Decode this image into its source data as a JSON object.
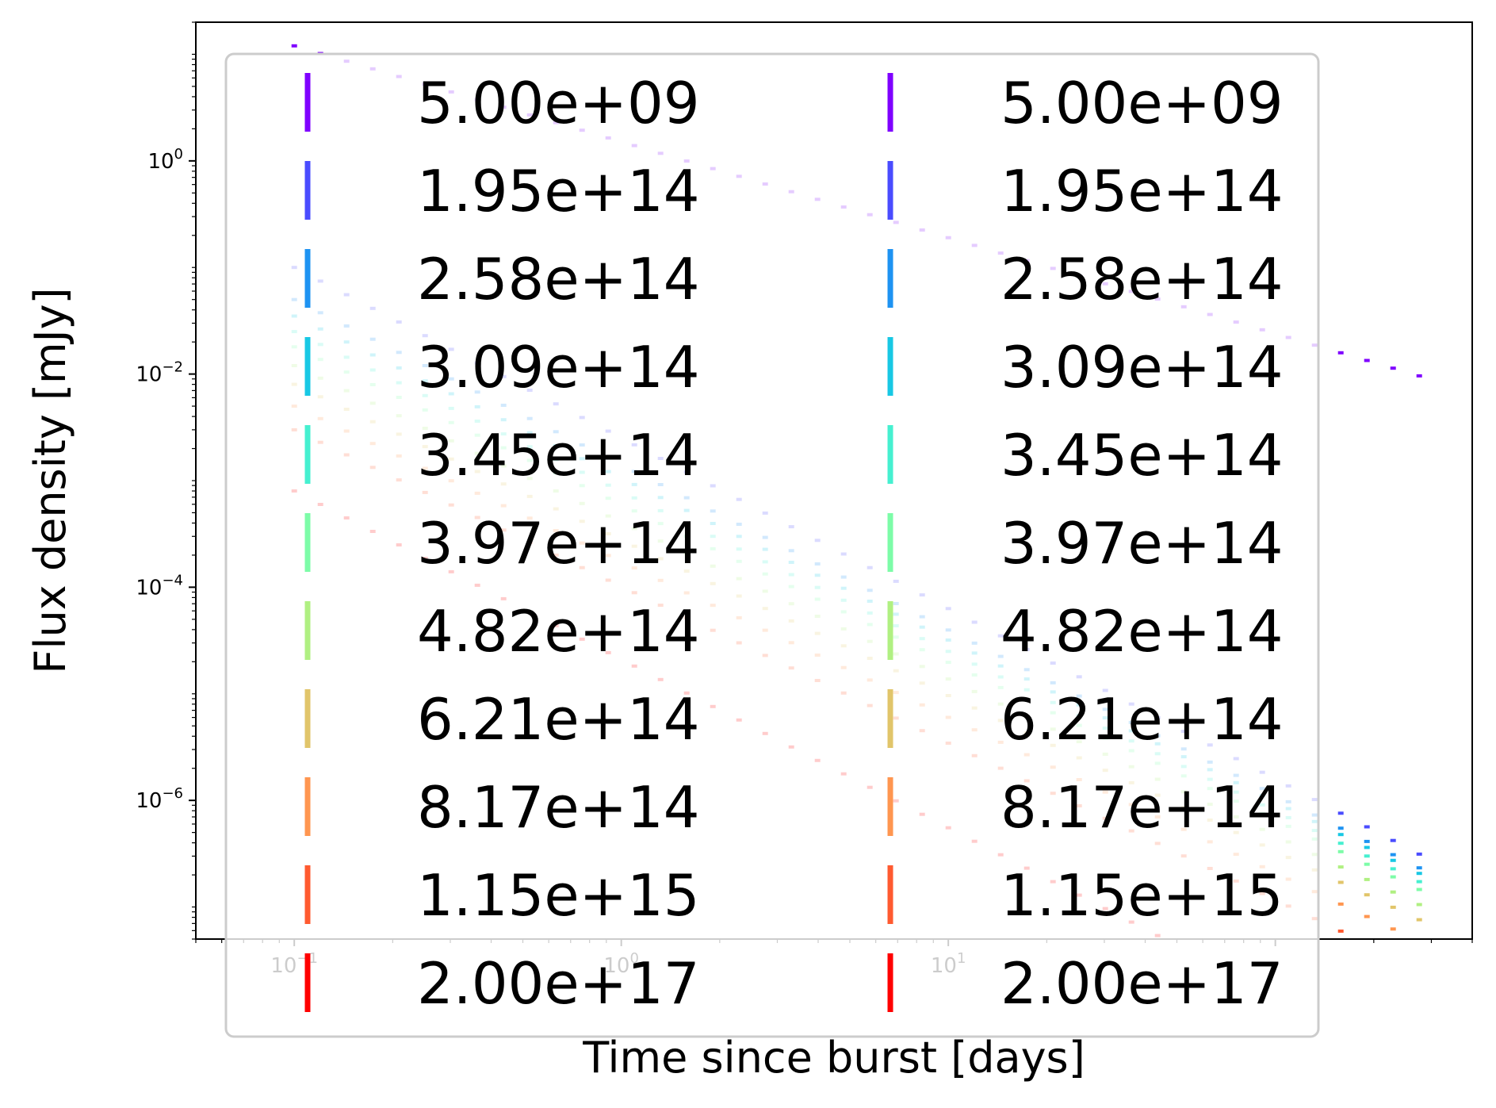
{
  "chart_data": {
    "type": "scatter",
    "title": "",
    "xlabel": "Time since burst [days]",
    "ylabel": "Flux density [mJy]",
    "xscale": "log",
    "yscale": "log",
    "xlim": [
      0.05,
      400
    ],
    "ylim": [
      5e-08,
      20
    ],
    "x_ticks": [
      {
        "value": 0.1,
        "base": "10",
        "exp": "−1"
      },
      {
        "value": 1,
        "base": "10",
        "exp": "0"
      },
      {
        "value": 10,
        "base": "10",
        "exp": "1"
      }
    ],
    "y_ticks": [
      {
        "value": 1,
        "base": "10",
        "exp": "0"
      },
      {
        "value": 0.01,
        "base": "10",
        "exp": "−2"
      },
      {
        "value": 0.0001,
        "base": "10",
        "exp": "−4"
      },
      {
        "value": 1e-06,
        "base": "10",
        "exp": "−6"
      }
    ],
    "grid": false,
    "legend": {
      "placement": "upper-left",
      "columns": 2,
      "frame_alpha": 0.8
    },
    "series": [
      {
        "name": "5.00e+09",
        "color": "#7f00ff",
        "t0": 0.1,
        "f0": 12,
        "idx": 0.9
      },
      {
        "name": "1.95e+14",
        "color": "#4a4cff",
        "t0": 0.1,
        "f0": 0.1,
        "idx": 1.6
      },
      {
        "name": "2.58e+14",
        "color": "#1e93f2",
        "t0": 0.1,
        "f0": 0.05,
        "idx": 1.55
      },
      {
        "name": "3.09e+14",
        "color": "#18c8e4",
        "t0": 0.1,
        "f0": 0.035,
        "idx": 1.52
      },
      {
        "name": "3.45e+14",
        "color": "#46f0d0",
        "t0": 0.1,
        "f0": 0.025,
        "idx": 1.5
      },
      {
        "name": "3.97e+14",
        "color": "#7dfca8",
        "t0": 0.1,
        "f0": 0.018,
        "idx": 1.48
      },
      {
        "name": "4.82e+14",
        "color": "#b0f082",
        "t0": 0.1,
        "f0": 0.012,
        "idx": 1.47
      },
      {
        "name": "6.21e+14",
        "color": "#e1c56a",
        "t0": 0.1,
        "f0": 0.008,
        "idx": 1.46
      },
      {
        "name": "8.17e+14",
        "color": "#ff9650",
        "t0": 0.1,
        "f0": 0.005,
        "idx": 1.46
      },
      {
        "name": "1.15e+15",
        "color": "#ff5a30",
        "t0": 0.1,
        "f0": 0.003,
        "idx": 1.47
      },
      {
        "name": "2.00e+17",
        "color": "#ff0000",
        "t0": 0.1,
        "f0": 0.0008,
        "idx": 1.58
      }
    ]
  }
}
